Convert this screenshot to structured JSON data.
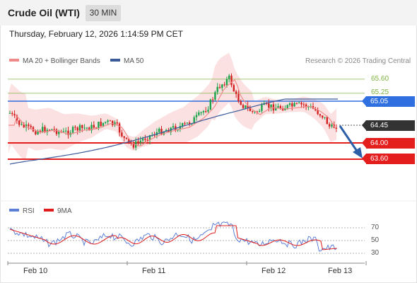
{
  "header": {
    "title": "Crude Oil (WTI)",
    "timeframe": "30 MIN"
  },
  "timestamp": "Thursday, February 12, 2026 1:14:59 PM CET",
  "legend": {
    "ma20": {
      "label": "MA 20 + Bollinger Bands",
      "color": "#f08a8a"
    },
    "ma50": {
      "label": "MA 50",
      "color": "#3b5a9a"
    }
  },
  "copyright": "Research © 2026 Trading Central",
  "levels": {
    "r2": "65.60",
    "r1": "65.25",
    "pivot": "65.05",
    "last": "64.45",
    "s1": "64.00",
    "s2": "63.60"
  },
  "colors": {
    "resistance": "#7fb241",
    "pivot": "#2f6fe0",
    "support": "#e41d1d",
    "last": "#333333",
    "bullish_candle": "#1aa34a",
    "bearish_candle": "#d32121",
    "rsi": "#5b7fd6",
    "rsi_ma": "#e01b1b",
    "arrow": "#2c5fa8"
  },
  "rsi_legend": {
    "rsi": "RSI",
    "ma": "9MA"
  },
  "rsi_ticks": [
    "70",
    "50",
    "30"
  ],
  "x_labels": [
    "Feb 10",
    "Feb 11",
    "Feb 12",
    "Feb 13"
  ],
  "arrow_direction": "down"
}
